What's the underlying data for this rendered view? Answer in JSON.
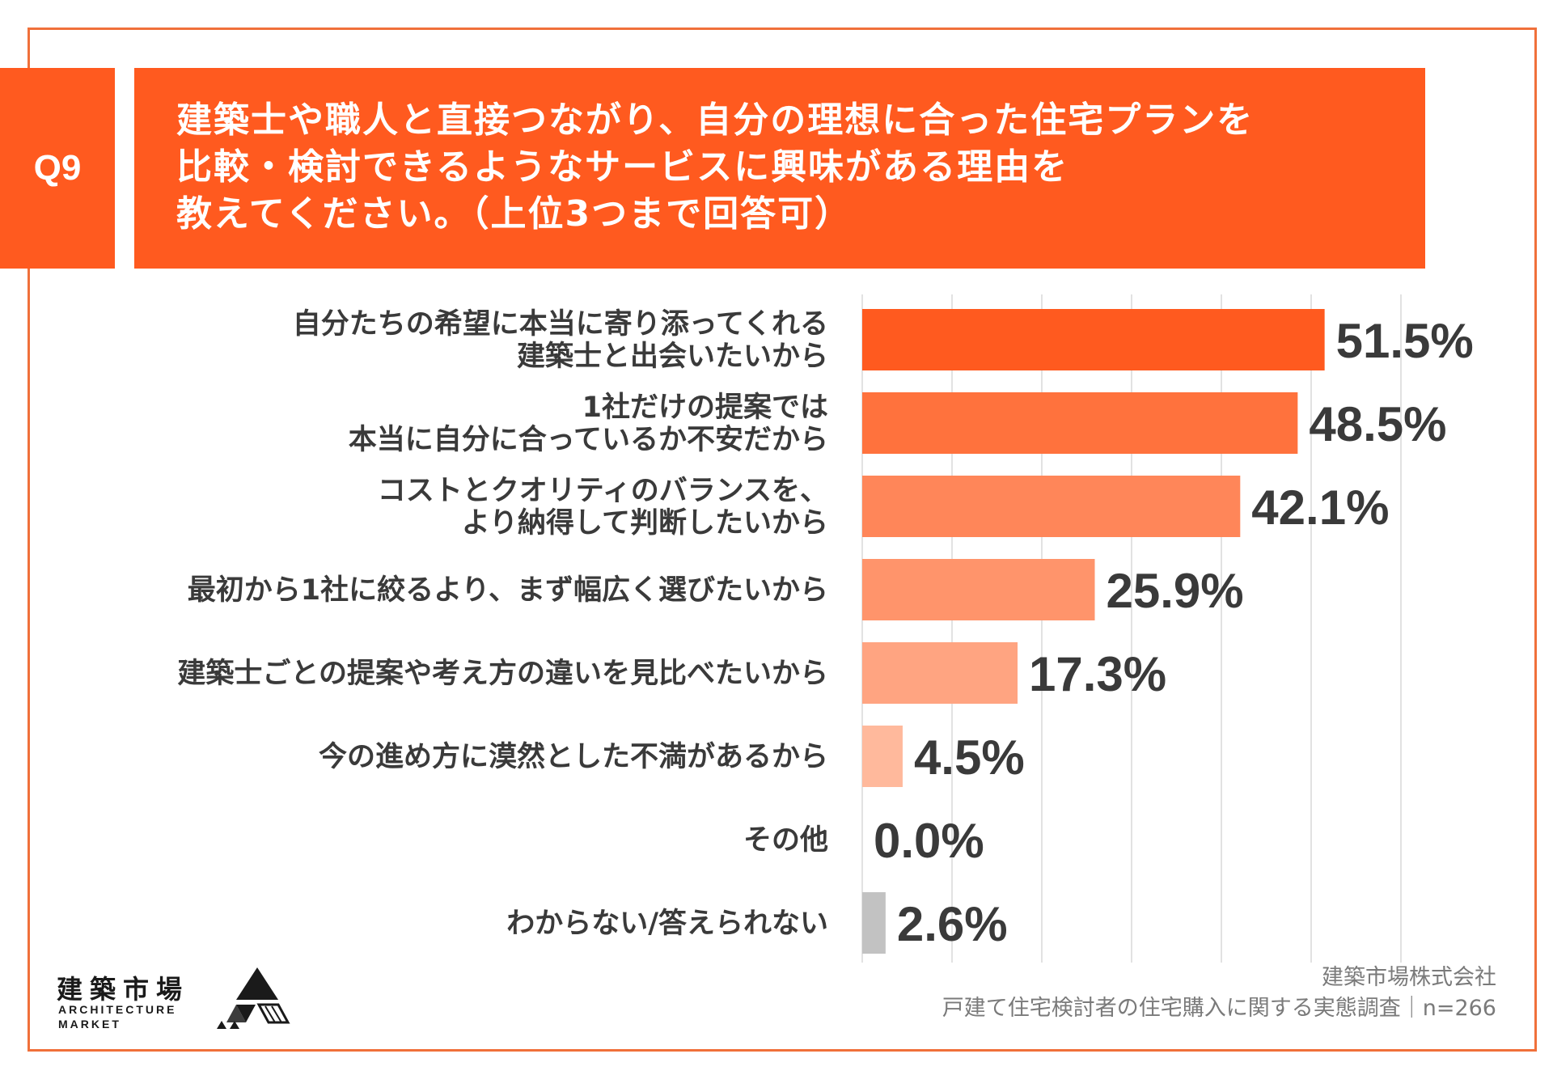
{
  "header": {
    "question_no": "Q9",
    "title_lines": [
      "建築士や職人と直接つながり、自分の理想に合った住宅プランを",
      "比較・検討できるようなサービスに興味がある理由を",
      "教えてください。（上位3つまで回答可）"
    ]
  },
  "chart_data": {
    "type": "bar",
    "orientation": "horizontal",
    "categories": [
      [
        "自分たちの希望に本当に寄り添ってくれる",
        "建築士と出会いたいから"
      ],
      [
        "1社だけの提案では",
        "本当に自分に合っているか不安だから"
      ],
      [
        "コストとクオリティのバランスを、",
        "より納得して判断したいから"
      ],
      [
        "最初から1社に絞るより、まず幅広く選びたいから"
      ],
      [
        "建築士ごとの提案や考え方の違いを見比べたいから"
      ],
      [
        "今の進め方に漠然とした不満があるから"
      ],
      [
        "その他"
      ],
      [
        "わからない/答えられない"
      ]
    ],
    "values": [
      51.5,
      48.5,
      42.1,
      25.9,
      17.3,
      4.5,
      0.0,
      2.6
    ],
    "value_labels": [
      "51.5%",
      "48.5%",
      "42.1%",
      "25.9%",
      "17.3%",
      "4.5%",
      "0.0%",
      "2.6%"
    ],
    "bar_colors": [
      "#ff5a1f",
      "#ff723d",
      "#ff8659",
      "#ff946b",
      "#ffa481",
      "#ffb99c",
      "#ffcdb8",
      "#c2c2c2"
    ],
    "xlim": [
      0,
      60
    ],
    "grid": true
  },
  "footer": {
    "company": "建築市場株式会社",
    "survey": "戸建て住宅検討者の住宅購入に関する実態調査｜n=266"
  },
  "logo": {
    "jp": "建築市場",
    "en_line1": "ARCHITECTURE",
    "en_line2": "MARKET"
  }
}
